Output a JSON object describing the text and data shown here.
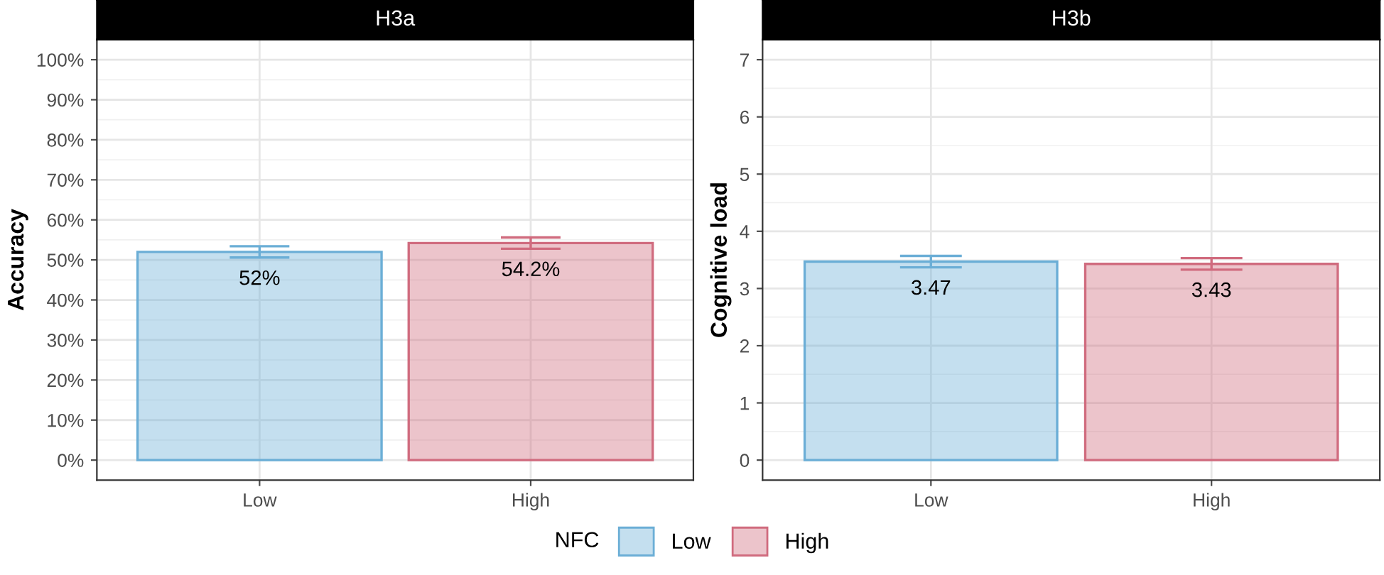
{
  "chart_data": [
    {
      "type": "bar",
      "title": "H3a",
      "ylabel": "Accuracy",
      "categories": [
        "Low",
        "High"
      ],
      "legend_title": "NFC",
      "legend": "bottom",
      "grid": true,
      "series": [
        {
          "name": "Low",
          "color": "#6baed6",
          "values": [
            52,
            null
          ],
          "errors": [
            1.4,
            null
          ],
          "value_labels": [
            "52%",
            null
          ]
        },
        {
          "name": "High",
          "color": "#d06b7e",
          "values": [
            null,
            54.2
          ],
          "errors": [
            null,
            1.4
          ],
          "value_labels": [
            null,
            "54.2%"
          ]
        }
      ],
      "ylim": [
        -5,
        105
      ],
      "yticks": [
        {
          "value": 0,
          "label": "0%"
        },
        {
          "value": 10,
          "label": "10%"
        },
        {
          "value": 20,
          "label": "20%"
        },
        {
          "value": 30,
          "label": "30%"
        },
        {
          "value": 40,
          "label": "40%"
        },
        {
          "value": 50,
          "label": "50%"
        },
        {
          "value": 60,
          "label": "60%"
        },
        {
          "value": 70,
          "label": "70%"
        },
        {
          "value": 80,
          "label": "80%"
        },
        {
          "value": 90,
          "label": "90%"
        },
        {
          "value": 100,
          "label": "100%"
        }
      ]
    },
    {
      "type": "bar",
      "title": "H3b",
      "ylabel": "Cognitive load",
      "categories": [
        "Low",
        "High"
      ],
      "grid": true,
      "series": [
        {
          "color": "#6baed6",
          "values": [
            3.47,
            null
          ],
          "errors": [
            0.1,
            null
          ],
          "value_labels": [
            "3.47",
            null
          ]
        },
        {
          "color": "#d06b7e",
          "values": [
            null,
            3.43
          ],
          "errors": [
            null,
            0.1
          ],
          "value_labels": [
            null,
            "3.43"
          ]
        }
      ],
      "ylim": [
        -0.35,
        7.35
      ],
      "yticks": [
        0,
        1,
        2,
        3,
        4,
        5,
        6,
        7
      ]
    }
  ]
}
